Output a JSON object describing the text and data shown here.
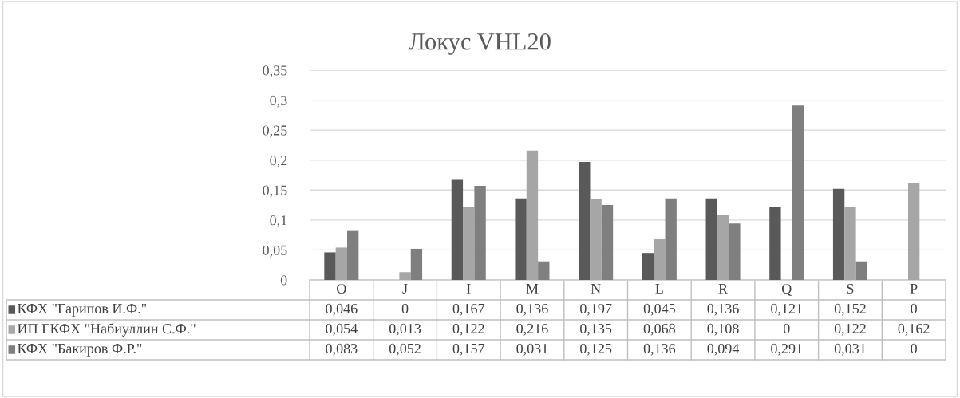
{
  "chart_data": {
    "type": "bar",
    "title": "Локус VHL20",
    "categories": [
      "O",
      "J",
      "I",
      "M",
      "N",
      "L",
      "R",
      "Q",
      "S",
      "P"
    ],
    "series": [
      {
        "name": "КФХ \"Гарипов И.Ф.\"",
        "color": "#595959",
        "values": [
          0.046,
          0,
          0.167,
          0.136,
          0.197,
          0.045,
          0.136,
          0.121,
          0.152,
          0
        ],
        "value_labels": [
          "0,046",
          "0",
          "0,167",
          "0,136",
          "0,197",
          "0,045",
          "0,136",
          "0,121",
          "0,152",
          "0"
        ]
      },
      {
        "name": "ИП ГКФХ \"Набиуллин С.Ф.\"",
        "color": "#a6a6a6",
        "values": [
          0.054,
          0.013,
          0.122,
          0.216,
          0.135,
          0.068,
          0.108,
          0,
          0.122,
          0.162
        ],
        "value_labels": [
          "0,054",
          "0,013",
          "0,122",
          "0,216",
          "0,135",
          "0,068",
          "0,108",
          "0",
          "0,122",
          "0,162"
        ]
      },
      {
        "name": "КФХ \"Бакиров Ф.Р.\"",
        "color": "#7f7f7f",
        "values": [
          0.083,
          0.052,
          0.157,
          0.031,
          0.125,
          0.136,
          0.094,
          0.291,
          0.031,
          0
        ],
        "value_labels": [
          "0,083",
          "0,052",
          "0,157",
          "0,031",
          "0,125",
          "0,136",
          "0,094",
          "0,291",
          "0,031",
          "0"
        ]
      }
    ],
    "ylim": [
      0,
      0.35
    ],
    "yticks": [
      0,
      {
        "value": 0.05,
        "label": "0,05"
      },
      {
        "value": 0.1,
        "label": "0,1"
      },
      {
        "value": 0.15,
        "label": "0,15"
      },
      {
        "value": 0.2,
        "label": "0,2"
      },
      {
        "value": 0.25,
        "label": "0,25"
      },
      {
        "value": 0.3,
        "label": "0,3"
      },
      {
        "value": 0.35,
        "label": "0,35"
      }
    ],
    "grid": "y",
    "legend": "bottom"
  }
}
